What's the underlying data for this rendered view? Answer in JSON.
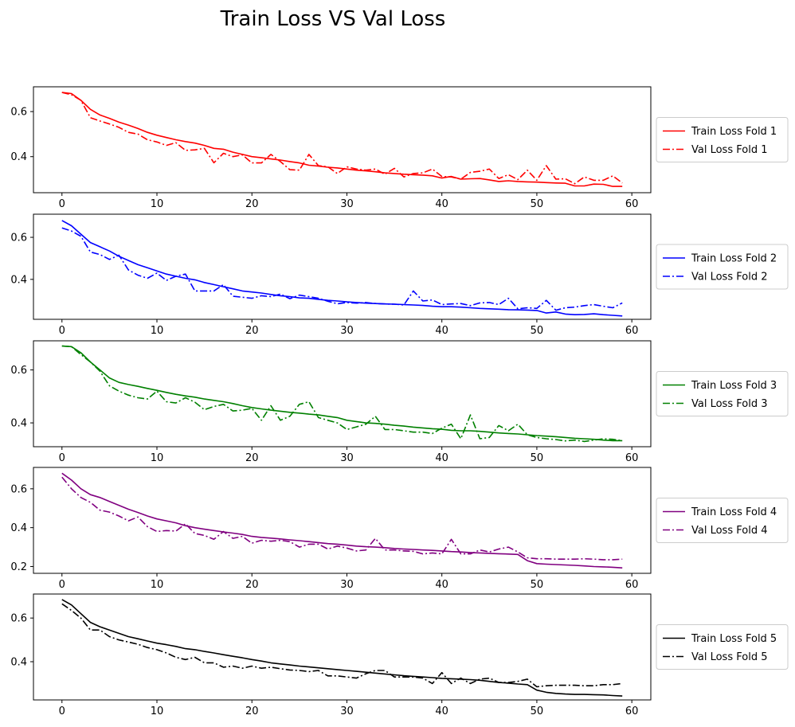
{
  "title": "Train Loss VS Val Loss",
  "chart_data": [
    {
      "type": "line",
      "color": "#ff0000",
      "xlim": [
        -3,
        62
      ],
      "ylim": [
        0.24,
        0.71
      ],
      "xticks": [
        0,
        10,
        20,
        30,
        40,
        50,
        60
      ],
      "yticks": [
        0.4,
        0.6
      ],
      "legend_position": "right",
      "series": [
        {
          "name": "Train Loss Fold 1",
          "style": "solid",
          "values": [
            0.685,
            0.68,
            0.65,
            0.61,
            0.585,
            0.57,
            0.553,
            0.54,
            0.525,
            0.508,
            0.495,
            0.485,
            0.475,
            0.467,
            0.46,
            0.45,
            0.437,
            0.433,
            0.42,
            0.41,
            0.4,
            0.395,
            0.39,
            0.385,
            0.378,
            0.372,
            0.362,
            0.358,
            0.353,
            0.35,
            0.345,
            0.34,
            0.337,
            0.333,
            0.328,
            0.325,
            0.322,
            0.32,
            0.318,
            0.315,
            0.305,
            0.312,
            0.3,
            0.302,
            0.303,
            0.297,
            0.29,
            0.293,
            0.29,
            0.288,
            0.287,
            0.285,
            0.283,
            0.282,
            0.27,
            0.27,
            0.278,
            0.277,
            0.268,
            0.268
          ]
        },
        {
          "name": "Val Loss Fold 1",
          "style": "dashdot",
          "values": [
            0.685,
            0.675,
            0.65,
            0.573,
            0.558,
            0.545,
            0.53,
            0.508,
            0.5,
            0.475,
            0.465,
            0.45,
            0.462,
            0.428,
            0.43,
            0.437,
            0.373,
            0.415,
            0.4,
            0.408,
            0.372,
            0.372,
            0.41,
            0.378,
            0.342,
            0.34,
            0.41,
            0.36,
            0.355,
            0.325,
            0.355,
            0.345,
            0.34,
            0.345,
            0.322,
            0.348,
            0.31,
            0.325,
            0.328,
            0.345,
            0.312,
            0.31,
            0.3,
            0.33,
            0.335,
            0.345,
            0.303,
            0.32,
            0.298,
            0.34,
            0.295,
            0.36,
            0.3,
            0.302,
            0.28,
            0.31,
            0.295,
            0.295,
            0.315,
            0.283
          ]
        }
      ]
    },
    {
      "type": "line",
      "color": "#0000ff",
      "xlim": [
        -3,
        62
      ],
      "ylim": [
        0.21,
        0.71
      ],
      "xticks": [
        0,
        10,
        20,
        30,
        40,
        50,
        60
      ],
      "yticks": [
        0.4,
        0.6
      ],
      "legend_position": "right",
      "series": [
        {
          "name": "Train Loss Fold 2",
          "style": "solid",
          "values": [
            0.68,
            0.655,
            0.615,
            0.575,
            0.555,
            0.535,
            0.51,
            0.49,
            0.47,
            0.455,
            0.44,
            0.425,
            0.415,
            0.405,
            0.398,
            0.385,
            0.375,
            0.365,
            0.355,
            0.345,
            0.34,
            0.335,
            0.328,
            0.322,
            0.318,
            0.312,
            0.31,
            0.305,
            0.3,
            0.297,
            0.293,
            0.29,
            0.287,
            0.285,
            0.283,
            0.282,
            0.28,
            0.278,
            0.276,
            0.272,
            0.27,
            0.27,
            0.268,
            0.265,
            0.262,
            0.26,
            0.258,
            0.256,
            0.255,
            0.254,
            0.252,
            0.24,
            0.245,
            0.235,
            0.232,
            0.233,
            0.236,
            0.232,
            0.229,
            0.226
          ]
        },
        {
          "name": "Val Loss Fold 2",
          "style": "dashdot",
          "values": [
            0.645,
            0.63,
            0.605,
            0.53,
            0.518,
            0.495,
            0.515,
            0.445,
            0.42,
            0.405,
            0.43,
            0.395,
            0.415,
            0.425,
            0.345,
            0.345,
            0.345,
            0.375,
            0.32,
            0.315,
            0.31,
            0.322,
            0.318,
            0.33,
            0.308,
            0.325,
            0.318,
            0.31,
            0.296,
            0.284,
            0.29,
            0.287,
            0.29,
            0.285,
            0.283,
            0.282,
            0.278,
            0.345,
            0.297,
            0.302,
            0.28,
            0.283,
            0.285,
            0.275,
            0.288,
            0.29,
            0.28,
            0.31,
            0.26,
            0.265,
            0.262,
            0.3,
            0.253,
            0.265,
            0.268,
            0.275,
            0.28,
            0.272,
            0.265,
            0.288
          ]
        }
      ]
    },
    {
      "type": "line",
      "color": "#008000",
      "xlim": [
        -3,
        62
      ],
      "ylim": [
        0.31,
        0.71
      ],
      "xticks": [
        0,
        10,
        20,
        30,
        40,
        50,
        60
      ],
      "yticks": [
        0.4,
        0.6
      ],
      "legend_position": "right",
      "series": [
        {
          "name": "Train Loss Fold 3",
          "style": "solid",
          "values": [
            0.69,
            0.688,
            0.665,
            0.63,
            0.6,
            0.57,
            0.553,
            0.545,
            0.538,
            0.53,
            0.523,
            0.515,
            0.508,
            0.502,
            0.497,
            0.49,
            0.485,
            0.48,
            0.473,
            0.465,
            0.458,
            0.453,
            0.448,
            0.444,
            0.44,
            0.437,
            0.433,
            0.43,
            0.425,
            0.42,
            0.41,
            0.405,
            0.4,
            0.398,
            0.395,
            0.391,
            0.388,
            0.384,
            0.381,
            0.378,
            0.376,
            0.372,
            0.37,
            0.37,
            0.368,
            0.365,
            0.362,
            0.36,
            0.358,
            0.355,
            0.352,
            0.35,
            0.348,
            0.345,
            0.342,
            0.34,
            0.338,
            0.335,
            0.333,
            0.333
          ]
        },
        {
          "name": "Val Loss Fold 3",
          "style": "dashdot",
          "values": [
            0.69,
            0.688,
            0.658,
            0.63,
            0.595,
            0.54,
            0.52,
            0.505,
            0.495,
            0.49,
            0.52,
            0.48,
            0.475,
            0.495,
            0.478,
            0.45,
            0.462,
            0.47,
            0.445,
            0.448,
            0.455,
            0.41,
            0.465,
            0.41,
            0.425,
            0.47,
            0.48,
            0.42,
            0.41,
            0.4,
            0.375,
            0.385,
            0.395,
            0.425,
            0.375,
            0.375,
            0.37,
            0.365,
            0.365,
            0.36,
            0.38,
            0.395,
            0.34,
            0.43,
            0.34,
            0.345,
            0.39,
            0.37,
            0.395,
            0.355,
            0.345,
            0.34,
            0.337,
            0.332,
            0.335,
            0.33,
            0.335,
            0.34,
            0.338,
            0.333
          ]
        }
      ]
    },
    {
      "type": "line",
      "color": "#800080",
      "xlim": [
        -3,
        62
      ],
      "ylim": [
        0.165,
        0.71
      ],
      "xticks": [
        0,
        10,
        20,
        30,
        40,
        50,
        60
      ],
      "yticks": [
        0.2,
        0.4,
        0.6
      ],
      "legend_position": "right",
      "series": [
        {
          "name": "Train Loss Fold 4",
          "style": "solid",
          "values": [
            0.68,
            0.645,
            0.6,
            0.57,
            0.555,
            0.535,
            0.515,
            0.495,
            0.478,
            0.46,
            0.445,
            0.435,
            0.425,
            0.41,
            0.4,
            0.392,
            0.385,
            0.378,
            0.372,
            0.365,
            0.355,
            0.35,
            0.346,
            0.342,
            0.337,
            0.333,
            0.328,
            0.323,
            0.318,
            0.315,
            0.31,
            0.305,
            0.302,
            0.3,
            0.297,
            0.293,
            0.29,
            0.288,
            0.285,
            0.283,
            0.28,
            0.277,
            0.275,
            0.272,
            0.27,
            0.268,
            0.266,
            0.264,
            0.262,
            0.23,
            0.215,
            0.212,
            0.21,
            0.208,
            0.206,
            0.203,
            0.2,
            0.198,
            0.196,
            0.193
          ]
        },
        {
          "name": "Val Loss Fold 4",
          "style": "dashdot",
          "values": [
            0.66,
            0.6,
            0.555,
            0.53,
            0.49,
            0.48,
            0.46,
            0.435,
            0.455,
            0.405,
            0.38,
            0.385,
            0.382,
            0.42,
            0.37,
            0.36,
            0.34,
            0.38,
            0.345,
            0.355,
            0.32,
            0.335,
            0.33,
            0.335,
            0.328,
            0.3,
            0.315,
            0.315,
            0.29,
            0.305,
            0.295,
            0.28,
            0.285,
            0.345,
            0.285,
            0.285,
            0.28,
            0.278,
            0.265,
            0.27,
            0.265,
            0.34,
            0.265,
            0.265,
            0.285,
            0.275,
            0.29,
            0.3,
            0.275,
            0.245,
            0.24,
            0.24,
            0.238,
            0.238,
            0.238,
            0.24,
            0.238,
            0.235,
            0.235,
            0.238
          ]
        }
      ]
    },
    {
      "type": "line",
      "color": "#000000",
      "xlim": [
        -3,
        62
      ],
      "ylim": [
        0.225,
        0.71
      ],
      "xticks": [
        0,
        10,
        20,
        30,
        40,
        50,
        60
      ],
      "yticks": [
        0.4,
        0.6
      ],
      "legend_position": "right",
      "series": [
        {
          "name": "Train Loss Fold 5",
          "style": "solid",
          "values": [
            0.685,
            0.66,
            0.62,
            0.58,
            0.56,
            0.545,
            0.53,
            0.515,
            0.505,
            0.495,
            0.485,
            0.478,
            0.47,
            0.46,
            0.455,
            0.447,
            0.44,
            0.432,
            0.425,
            0.418,
            0.41,
            0.403,
            0.395,
            0.39,
            0.385,
            0.38,
            0.376,
            0.372,
            0.368,
            0.364,
            0.36,
            0.356,
            0.352,
            0.348,
            0.344,
            0.34,
            0.336,
            0.333,
            0.33,
            0.327,
            0.324,
            0.322,
            0.32,
            0.318,
            0.315,
            0.31,
            0.305,
            0.302,
            0.298,
            0.295,
            0.27,
            0.26,
            0.255,
            0.252,
            0.25,
            0.25,
            0.249,
            0.248,
            0.245,
            0.243
          ]
        },
        {
          "name": "Val Loss Fold 5",
          "style": "dashdot",
          "values": [
            0.665,
            0.635,
            0.6,
            0.545,
            0.545,
            0.515,
            0.5,
            0.49,
            0.48,
            0.465,
            0.455,
            0.44,
            0.42,
            0.41,
            0.42,
            0.395,
            0.395,
            0.375,
            0.38,
            0.37,
            0.38,
            0.37,
            0.375,
            0.368,
            0.362,
            0.36,
            0.355,
            0.36,
            0.335,
            0.335,
            0.33,
            0.325,
            0.345,
            0.36,
            0.36,
            0.33,
            0.33,
            0.33,
            0.325,
            0.3,
            0.35,
            0.3,
            0.325,
            0.3,
            0.32,
            0.325,
            0.305,
            0.305,
            0.31,
            0.32,
            0.285,
            0.29,
            0.292,
            0.292,
            0.292,
            0.29,
            0.29,
            0.295,
            0.295,
            0.3
          ]
        }
      ]
    }
  ]
}
